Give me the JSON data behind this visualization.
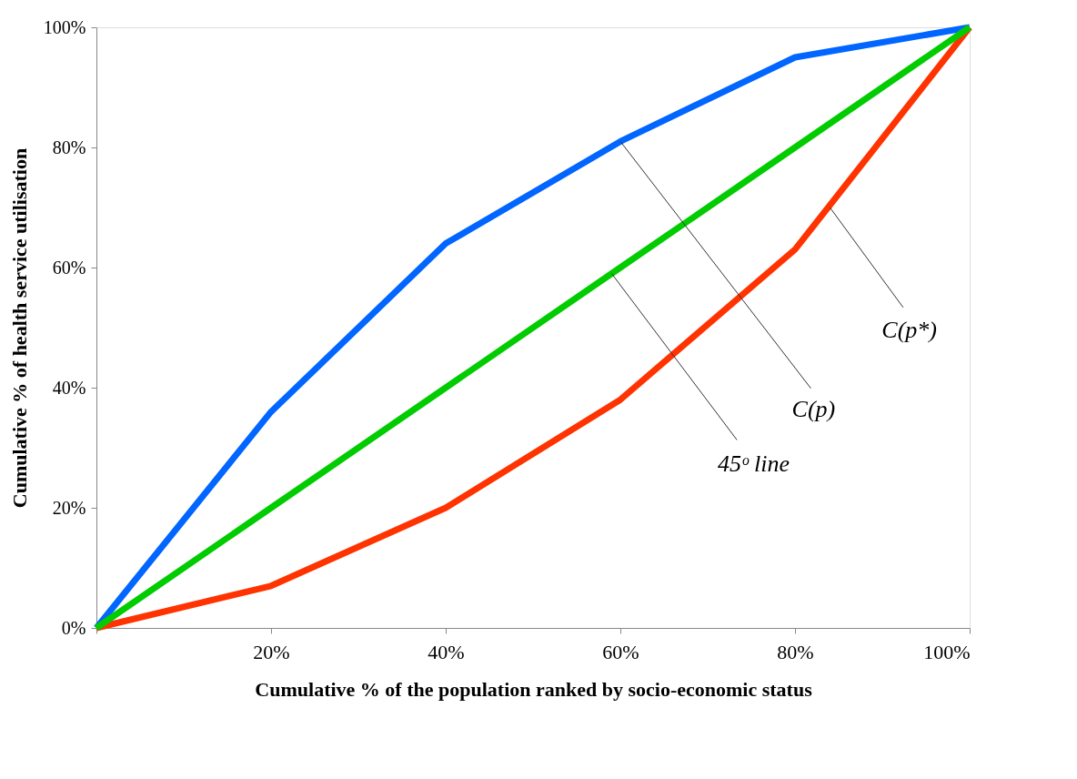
{
  "chart_data": {
    "type": "line",
    "xlabel": "Cumulative % of the population ranked by socio-economic status",
    "ylabel": "Cumulative % of health service utilisation",
    "x": [
      0,
      20,
      40,
      60,
      80,
      100
    ],
    "series": [
      {
        "color": "#0066ff",
        "values": [
          0,
          36,
          64,
          81,
          95,
          100
        ]
      },
      {
        "color": "#ff3300",
        "values": [
          0,
          7,
          20,
          38,
          63,
          100
        ]
      },
      {
        "color": "#00cc00",
        "values": [
          0,
          20,
          40,
          60,
          80,
          100
        ]
      }
    ],
    "xlim": [
      0,
      100
    ],
    "ylim": [
      0,
      100
    ],
    "xticks": [
      {
        "value": 0,
        "label": null
      },
      {
        "value": 20,
        "label": "20%"
      },
      {
        "value": 40,
        "label": "40%"
      },
      {
        "value": 60,
        "label": "60%"
      },
      {
        "value": 80,
        "label": "80%"
      },
      {
        "value": 100,
        "label": "100%"
      }
    ],
    "yticks": [
      {
        "value": 0,
        "label": "0%"
      },
      {
        "value": 20,
        "label": "20%"
      },
      {
        "value": 40,
        "label": "40%"
      },
      {
        "value": 60,
        "label": "60%"
      },
      {
        "value": 80,
        "label": "80%"
      },
      {
        "value": 100,
        "label": "100%"
      }
    ],
    "annotations": [
      {
        "text": "C(p)",
        "x": 60,
        "y": 81
      },
      {
        "text": "45ᵒ line",
        "x": 59,
        "y": 59
      },
      {
        "text": "C(p*)",
        "x": 84,
        "y": 70
      }
    ],
    "grid": false,
    "legend": false,
    "marker": "none",
    "line_style": "solid"
  }
}
